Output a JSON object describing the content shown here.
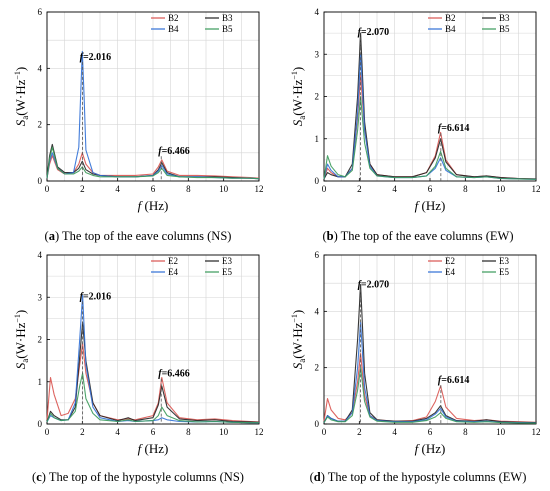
{
  "chart_data": [
    {
      "type": "line",
      "caption": {
        "letter": "(a)",
        "text": " The top of the eave columns (NS)"
      },
      "xlabel_sym": "f",
      "xlabel_unit": "(Hz)",
      "ylabel_sym": "S",
      "ylabel_sub": "a",
      "ylabel_unit": "(W·Hz",
      "xlim": [
        0,
        12
      ],
      "ylim": [
        0,
        6
      ],
      "xticks": [
        0,
        2,
        4,
        6,
        8,
        10,
        12
      ],
      "yticks": [
        0,
        2,
        4,
        6
      ],
      "legend": [
        "B2",
        "B3",
        "B4",
        "B5"
      ],
      "peaks": [
        {
          "f": 2.016,
          "label": "2.016",
          "y": 4.3
        },
        {
          "f": 6.466,
          "label": "6.466",
          "y": 0.95
        }
      ],
      "series": [
        {
          "name": "B2",
          "color": "#d9534f",
          "x": [
            0,
            0.15,
            0.3,
            0.6,
            1.0,
            1.5,
            1.8,
            2.0,
            2.2,
            2.6,
            3.0,
            4.0,
            5.0,
            6.0,
            6.3,
            6.5,
            6.8,
            7.5,
            8.5,
            9.5,
            10.5,
            11.5,
            12
          ],
          "y": [
            0.1,
            0.6,
            0.9,
            0.4,
            0.25,
            0.3,
            0.6,
            1.0,
            0.6,
            0.3,
            0.2,
            0.2,
            0.2,
            0.25,
            0.5,
            0.75,
            0.35,
            0.2,
            0.2,
            0.18,
            0.15,
            0.12,
            0.1
          ]
        },
        {
          "name": "B3",
          "color": "#222222",
          "x": [
            0,
            0.15,
            0.3,
            0.6,
            1.0,
            1.5,
            1.8,
            2.0,
            2.2,
            2.6,
            3.0,
            4.0,
            5.0,
            6.0,
            6.3,
            6.5,
            6.8,
            7.5,
            8.5,
            9.5,
            10.5,
            11.5,
            12
          ],
          "y": [
            0.1,
            0.9,
            1.3,
            0.5,
            0.3,
            0.3,
            0.45,
            0.7,
            0.4,
            0.25,
            0.2,
            0.15,
            0.15,
            0.2,
            0.4,
            0.65,
            0.3,
            0.15,
            0.15,
            0.15,
            0.12,
            0.1,
            0.08
          ]
        },
        {
          "name": "B4",
          "color": "#2f6fd6",
          "x": [
            0,
            0.15,
            0.3,
            0.6,
            1.0,
            1.5,
            1.8,
            1.9,
            2.0,
            2.1,
            2.2,
            2.6,
            3.0,
            4.0,
            5.0,
            6.0,
            6.3,
            6.5,
            6.8,
            7.5,
            8.5,
            9.5,
            10.5,
            11.5,
            12
          ],
          "y": [
            0.1,
            0.7,
            1.0,
            0.45,
            0.25,
            0.3,
            1.2,
            3.0,
            4.6,
            3.0,
            1.1,
            0.3,
            0.2,
            0.15,
            0.15,
            0.2,
            0.35,
            0.55,
            0.25,
            0.15,
            0.15,
            0.12,
            0.1,
            0.1,
            0.08
          ]
        },
        {
          "name": "B5",
          "color": "#3a9a5a",
          "x": [
            0,
            0.15,
            0.3,
            0.6,
            1.0,
            1.5,
            1.8,
            2.0,
            2.2,
            2.6,
            3.0,
            4.0,
            5.0,
            6.0,
            6.3,
            6.5,
            6.8,
            7.5,
            8.5,
            9.5,
            10.5,
            11.5,
            12
          ],
          "y": [
            0.1,
            0.8,
            1.2,
            0.45,
            0.25,
            0.25,
            0.35,
            0.5,
            0.3,
            0.2,
            0.15,
            0.15,
            0.15,
            0.18,
            0.3,
            0.45,
            0.2,
            0.15,
            0.12,
            0.12,
            0.1,
            0.1,
            0.08
          ]
        }
      ]
    },
    {
      "type": "line",
      "caption": {
        "letter": "(b)",
        "text": " The top of the eave columns (EW)"
      },
      "xlabel_sym": "f",
      "xlabel_unit": "(Hz)",
      "ylabel_sym": "S",
      "ylabel_sub": "a",
      "ylabel_unit": "(W·Hz",
      "xlim": [
        0,
        12
      ],
      "ylim": [
        0,
        4
      ],
      "xticks": [
        0,
        2,
        4,
        6,
        8,
        10,
        12
      ],
      "yticks": [
        0,
        1,
        2,
        3,
        4
      ],
      "legend": [
        "B2",
        "B3",
        "B4",
        "B5"
      ],
      "peaks": [
        {
          "f": 2.07,
          "label": "2.070",
          "y": 3.45
        },
        {
          "f": 6.614,
          "label": "6.614",
          "y": 1.18
        }
      ],
      "series": [
        {
          "name": "B2",
          "color": "#d9534f",
          "x": [
            0,
            0.2,
            0.4,
            0.8,
            1.2,
            1.6,
            1.9,
            2.07,
            2.3,
            2.6,
            3.0,
            4.0,
            5.0,
            5.8,
            6.3,
            6.6,
            6.9,
            7.5,
            8.5,
            9.2,
            10.0,
            11.0,
            12
          ],
          "y": [
            0.05,
            0.3,
            0.2,
            0.1,
            0.1,
            0.3,
            1.5,
            2.5,
            1.2,
            0.4,
            0.15,
            0.1,
            0.1,
            0.2,
            0.6,
            1.15,
            0.5,
            0.15,
            0.1,
            0.12,
            0.08,
            0.06,
            0.05
          ]
        },
        {
          "name": "B3",
          "color": "#222222",
          "x": [
            0,
            0.2,
            0.4,
            0.8,
            1.2,
            1.6,
            1.9,
            2.07,
            2.3,
            2.6,
            3.0,
            4.0,
            5.0,
            5.8,
            6.3,
            6.6,
            6.9,
            7.5,
            8.5,
            9.2,
            10.0,
            11.0,
            12
          ],
          "y": [
            0.05,
            0.2,
            0.15,
            0.1,
            0.1,
            0.4,
            2.0,
            3.5,
            1.4,
            0.4,
            0.15,
            0.1,
            0.1,
            0.2,
            0.55,
            1.0,
            0.45,
            0.15,
            0.1,
            0.12,
            0.08,
            0.06,
            0.05
          ]
        },
        {
          "name": "B4",
          "color": "#2f6fd6",
          "x": [
            0,
            0.2,
            0.4,
            0.8,
            1.2,
            1.6,
            1.9,
            2.07,
            2.3,
            2.6,
            3.0,
            4.0,
            5.0,
            5.8,
            6.3,
            6.6,
            6.9,
            7.5,
            8.5,
            9.2,
            10.0,
            11.0,
            12
          ],
          "y": [
            0.05,
            0.4,
            0.25,
            0.1,
            0.1,
            0.3,
            1.6,
            3.0,
            1.2,
            0.35,
            0.12,
            0.08,
            0.08,
            0.12,
            0.3,
            0.55,
            0.25,
            0.1,
            0.08,
            0.1,
            0.06,
            0.05,
            0.04
          ]
        },
        {
          "name": "B5",
          "color": "#3a9a5a",
          "x": [
            0,
            0.2,
            0.4,
            0.8,
            1.2,
            1.6,
            1.9,
            2.07,
            2.3,
            2.6,
            3.0,
            4.0,
            5.0,
            5.8,
            6.3,
            6.6,
            6.9,
            7.5,
            8.5,
            9.2,
            10.0,
            11.0,
            12
          ],
          "y": [
            0.05,
            0.6,
            0.35,
            0.15,
            0.1,
            0.25,
            1.2,
            2.0,
            0.9,
            0.3,
            0.12,
            0.08,
            0.08,
            0.12,
            0.35,
            0.7,
            0.3,
            0.1,
            0.08,
            0.1,
            0.06,
            0.05,
            0.04
          ]
        }
      ]
    },
    {
      "type": "line",
      "caption": {
        "letter": "(c)",
        "text": " The top of the hypostyle columns (NS)"
      },
      "xlabel_sym": "f",
      "xlabel_unit": "(Hz)",
      "ylabel_sym": "S",
      "ylabel_sub": "a",
      "ylabel_unit": "(W·Hz",
      "xlim": [
        0,
        12
      ],
      "ylim": [
        0,
        4
      ],
      "xticks": [
        0,
        2,
        4,
        6,
        8,
        10,
        12
      ],
      "yticks": [
        0,
        1,
        2,
        3,
        4
      ],
      "legend": [
        "E2",
        "E3",
        "E4",
        "E5"
      ],
      "peaks": [
        {
          "f": 2.016,
          "label": "2.016",
          "y": 2.95
        },
        {
          "f": 6.466,
          "label": "6.466",
          "y": 1.12
        }
      ],
      "series": [
        {
          "name": "E2",
          "color": "#d9534f",
          "x": [
            0,
            0.2,
            0.4,
            0.8,
            1.2,
            1.6,
            1.85,
            2.016,
            2.2,
            2.6,
            3.0,
            4.0,
            4.6,
            5.0,
            6.0,
            6.3,
            6.5,
            6.8,
            7.5,
            8.5,
            9.5,
            10.5,
            11.5,
            12
          ],
          "y": [
            0.1,
            1.1,
            0.7,
            0.2,
            0.25,
            0.6,
            1.4,
            1.9,
            1.2,
            0.5,
            0.2,
            0.1,
            0.12,
            0.1,
            0.2,
            0.5,
            1.1,
            0.5,
            0.15,
            0.1,
            0.12,
            0.08,
            0.06,
            0.05
          ]
        },
        {
          "name": "E3",
          "color": "#222222",
          "x": [
            0,
            0.2,
            0.4,
            0.8,
            1.2,
            1.6,
            1.85,
            2.016,
            2.2,
            2.6,
            3.0,
            4.0,
            4.6,
            5.0,
            6.0,
            6.3,
            6.5,
            6.8,
            7.5,
            8.5,
            9.5,
            10.5,
            11.5,
            12
          ],
          "y": [
            0.05,
            0.3,
            0.2,
            0.1,
            0.1,
            0.4,
            1.6,
            2.4,
            1.5,
            0.5,
            0.2,
            0.08,
            0.15,
            0.08,
            0.15,
            0.45,
            0.9,
            0.4,
            0.12,
            0.08,
            0.1,
            0.06,
            0.05,
            0.04
          ]
        },
        {
          "name": "E4",
          "color": "#2f6fd6",
          "x": [
            0,
            0.2,
            0.4,
            0.8,
            1.2,
            1.6,
            1.85,
            2.016,
            2.2,
            2.6,
            3.0,
            4.0,
            4.6,
            5.0,
            6.0,
            6.3,
            6.5,
            6.8,
            7.5,
            8.5,
            9.5,
            10.5,
            11.5,
            12
          ],
          "y": [
            0.05,
            0.2,
            0.15,
            0.08,
            0.1,
            0.5,
            2.0,
            3.05,
            1.4,
            0.4,
            0.15,
            0.06,
            0.08,
            0.06,
            0.08,
            0.1,
            0.15,
            0.1,
            0.06,
            0.05,
            0.06,
            0.04,
            0.03,
            0.03
          ]
        },
        {
          "name": "E5",
          "color": "#3a9a5a",
          "x": [
            0,
            0.2,
            0.4,
            0.8,
            1.2,
            1.6,
            1.85,
            2.016,
            2.2,
            2.6,
            3.0,
            4.0,
            4.6,
            5.0,
            6.0,
            6.3,
            6.5,
            6.8,
            7.5,
            8.5,
            9.5,
            10.5,
            11.5,
            12
          ],
          "y": [
            0.05,
            0.25,
            0.15,
            0.08,
            0.1,
            0.3,
            0.9,
            1.2,
            0.6,
            0.25,
            0.1,
            0.06,
            0.1,
            0.06,
            0.08,
            0.2,
            0.4,
            0.2,
            0.08,
            0.05,
            0.06,
            0.04,
            0.03,
            0.03
          ]
        }
      ]
    },
    {
      "type": "line",
      "caption": {
        "letter": "(d)",
        "text": " The top of the hypostyle columns (EW)"
      },
      "xlabel_sym": "f",
      "xlabel_unit": "(Hz)",
      "ylabel_sym": "S",
      "ylabel_sub": "a",
      "ylabel_unit": "(W·Hz",
      "xlim": [
        0,
        12
      ],
      "ylim": [
        0,
        6
      ],
      "xticks": [
        0,
        2,
        4,
        6,
        8,
        10,
        12
      ],
      "yticks": [
        0,
        2,
        4,
        6
      ],
      "legend": [
        "E2",
        "E3",
        "E4",
        "E5"
      ],
      "peaks": [
        {
          "f": 2.07,
          "label": "2.070",
          "y": 4.85
        },
        {
          "f": 6.614,
          "label": "6.614",
          "y": 1.45
        }
      ],
      "series": [
        {
          "name": "E2",
          "color": "#d9534f",
          "x": [
            0,
            0.2,
            0.4,
            0.8,
            1.2,
            1.6,
            1.9,
            2.07,
            2.3,
            2.6,
            3.0,
            4.0,
            5.0,
            5.8,
            6.3,
            6.6,
            6.9,
            7.5,
            8.5,
            9.2,
            10.0,
            11.0,
            12
          ],
          "y": [
            0.1,
            0.9,
            0.5,
            0.2,
            0.15,
            0.4,
            1.5,
            2.5,
            1.0,
            0.3,
            0.15,
            0.1,
            0.12,
            0.25,
            0.8,
            1.35,
            0.6,
            0.2,
            0.12,
            0.15,
            0.1,
            0.08,
            0.06
          ]
        },
        {
          "name": "E3",
          "color": "#222222",
          "x": [
            0,
            0.2,
            0.4,
            0.8,
            1.2,
            1.6,
            1.9,
            2.07,
            2.3,
            2.6,
            3.0,
            4.0,
            5.0,
            5.8,
            6.3,
            6.6,
            6.9,
            7.5,
            8.5,
            9.2,
            10.0,
            11.0,
            12
          ],
          "y": [
            0.05,
            0.3,
            0.2,
            0.1,
            0.1,
            0.5,
            3.0,
            4.95,
            1.8,
            0.4,
            0.15,
            0.1,
            0.1,
            0.2,
            0.4,
            0.65,
            0.3,
            0.12,
            0.1,
            0.15,
            0.08,
            0.06,
            0.05
          ]
        },
        {
          "name": "E4",
          "color": "#2f6fd6",
          "x": [
            0,
            0.2,
            0.4,
            0.8,
            1.2,
            1.6,
            1.9,
            2.07,
            2.3,
            2.6,
            3.0,
            4.0,
            5.0,
            5.8,
            6.3,
            6.6,
            6.9,
            7.5,
            8.5,
            9.2,
            10.0,
            11.0,
            12
          ],
          "y": [
            0.05,
            0.3,
            0.2,
            0.1,
            0.1,
            0.4,
            2.0,
            3.6,
            1.3,
            0.3,
            0.12,
            0.08,
            0.08,
            0.15,
            0.35,
            0.55,
            0.25,
            0.1,
            0.08,
            0.1,
            0.06,
            0.05,
            0.04
          ]
        },
        {
          "name": "E5",
          "color": "#3a9a5a",
          "x": [
            0,
            0.2,
            0.4,
            0.8,
            1.2,
            1.6,
            1.9,
            2.07,
            2.3,
            2.6,
            3.0,
            4.0,
            5.0,
            5.8,
            6.3,
            6.6,
            6.9,
            7.5,
            8.5,
            9.2,
            10.0,
            11.0,
            12
          ],
          "y": [
            0.05,
            0.25,
            0.15,
            0.08,
            0.08,
            0.3,
            1.2,
            2.0,
            0.8,
            0.25,
            0.1,
            0.06,
            0.06,
            0.12,
            0.25,
            0.4,
            0.2,
            0.08,
            0.06,
            0.08,
            0.05,
            0.04,
            0.03
          ]
        }
      ]
    }
  ]
}
